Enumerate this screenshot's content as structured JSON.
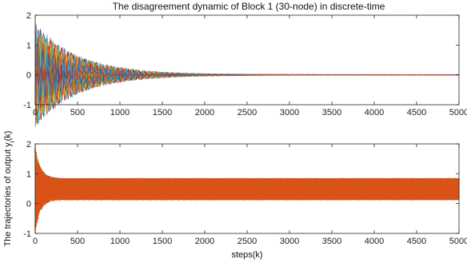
{
  "chart_data": [
    {
      "type": "line",
      "title": "The disagreement dynamic of Block 1 (30-node) in discrete-time",
      "xlabel": "",
      "ylabel": "",
      "xlim": [
        0,
        5000
      ],
      "ylim": [
        -1,
        2
      ],
      "xticks": [
        "0",
        "500",
        "1000",
        "1500",
        "2000",
        "2500",
        "3000",
        "3500",
        "4000",
        "4500",
        "5000"
      ],
      "yticks": [
        "-1",
        "0",
        "1",
        "2"
      ],
      "grid": false,
      "description": "30 node trajectories oscillating around 0, amplitude ~1.9 at start decaying to ~0 by ~2000 steps",
      "envelope": {
        "center": 0,
        "initial_amplitude": 1.9,
        "decay_steps": 2000
      },
      "colors": [
        "#0072BD",
        "#D95319",
        "#EDB120",
        "#7E2F8E",
        "#77AC30",
        "#4DBEEE",
        "#A2142F"
      ]
    },
    {
      "type": "line",
      "title": "",
      "xlabel": "steps(k)",
      "ylabel": "The trajectories of output y_i(k)",
      "xlim": [
        0,
        5000
      ],
      "ylim": [
        -1,
        2
      ],
      "xticks": [
        "0",
        "500",
        "1000",
        "1500",
        "2000",
        "2500",
        "3000",
        "3500",
        "4000",
        "4500",
        "5000"
      ],
      "yticks": [
        "-1",
        "0",
        "1",
        "2"
      ],
      "grid": false,
      "description": "30 output trajectories oscillating in a band roughly between 0.1 and 0.85, settling into a steady band",
      "band": {
        "lower": 0.12,
        "upper": 0.85,
        "initial_min": -0.95,
        "initial_max": 1.2
      },
      "colors": [
        "#0072BD",
        "#D95319",
        "#EDB120",
        "#7E2F8E",
        "#77AC30",
        "#4DBEEE",
        "#A2142F"
      ],
      "dominant_color": "#D95319"
    }
  ]
}
